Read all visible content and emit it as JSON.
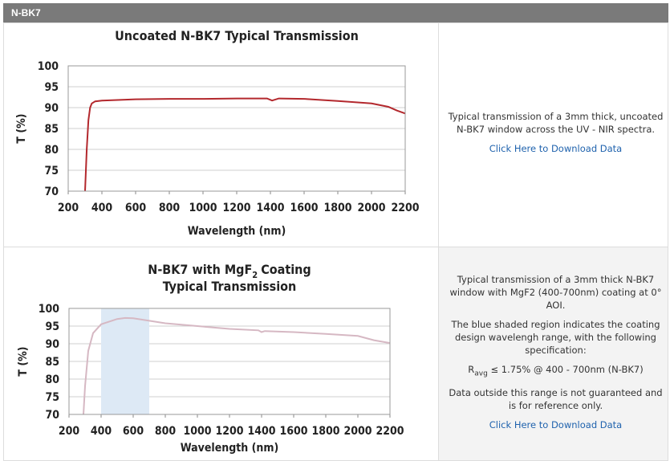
{
  "header": "N-BK7",
  "chart_data": [
    {
      "type": "line",
      "title": "Uncoated N-BK7 Typical Transmission",
      "x_label": "Wavelength (nm)",
      "y_label": "T (%)",
      "x": [
        300,
        310,
        320,
        330,
        340,
        360,
        400,
        600,
        800,
        1000,
        1200,
        1380,
        1410,
        1450,
        1600,
        1800,
        2000,
        2100,
        2150,
        2200
      ],
      "values": [
        70,
        80,
        87,
        90,
        91,
        91.5,
        91.7,
        92,
        92.1,
        92.1,
        92.2,
        92.2,
        91.7,
        92.2,
        92.1,
        91.6,
        91,
        90.2,
        89.3,
        88.6
      ],
      "color": "#b3282d",
      "xlim": [
        200,
        2200
      ],
      "ylim": [
        70,
        100
      ],
      "xticks": [
        200,
        400,
        600,
        800,
        1000,
        1200,
        1400,
        1600,
        1800,
        2000,
        2200
      ],
      "yticks": [
        70,
        75,
        80,
        85,
        90,
        95,
        100
      ],
      "grid": true
    },
    {
      "type": "line",
      "title": {
        "before": "N-BK7 with MgF",
        "sub": "2",
        "after": "Coating"
      },
      "subtitle": "Typical Transmission",
      "x_label": "Wavelength (nm)",
      "y_label": "T (%)",
      "x": [
        290,
        300,
        320,
        350,
        400,
        500,
        550,
        600,
        700,
        800,
        1000,
        1200,
        1380,
        1400,
        1420,
        1600,
        1800,
        2000,
        2100,
        2200
      ],
      "values": [
        70,
        78,
        88,
        93,
        95.5,
        97,
        97.3,
        97.2,
        96.5,
        95.8,
        95,
        94.2,
        93.8,
        93.3,
        93.6,
        93.3,
        92.8,
        92.2,
        91,
        90.2
      ],
      "color": "#d6b8c3",
      "shade": [
        400,
        700
      ],
      "shade_color": "#dde9f5",
      "xlim": [
        200,
        2200
      ],
      "ylim": [
        70,
        100
      ],
      "xticks": [
        200,
        400,
        600,
        800,
        1000,
        1200,
        1400,
        1600,
        1800,
        2000,
        2200
      ],
      "yticks": [
        70,
        75,
        80,
        85,
        90,
        95,
        100
      ],
      "grid": true
    }
  ],
  "descriptions": [
    {
      "paragraphs": [
        "Typical transmission of a 3mm thick, uncoated N-BK7 window across the UV - NIR spectra."
      ],
      "link": "Click Here to Download Data"
    },
    {
      "paragraphs": [
        "Typical transmission of a 3mm thick N-BK7 window with MgF2 (400-700nm) coating at 0° AOI.",
        "The blue shaded region indicates the coating design wavelengh range, with the following specification:"
      ],
      "spec": [
        "R",
        "avg",
        "≤ 1.75% @ 400 - 700nm (N-BK7)"
      ],
      "note": "Data outside this range is not guaranteed and is for reference only.",
      "link": "Click Here to Download Data"
    }
  ]
}
